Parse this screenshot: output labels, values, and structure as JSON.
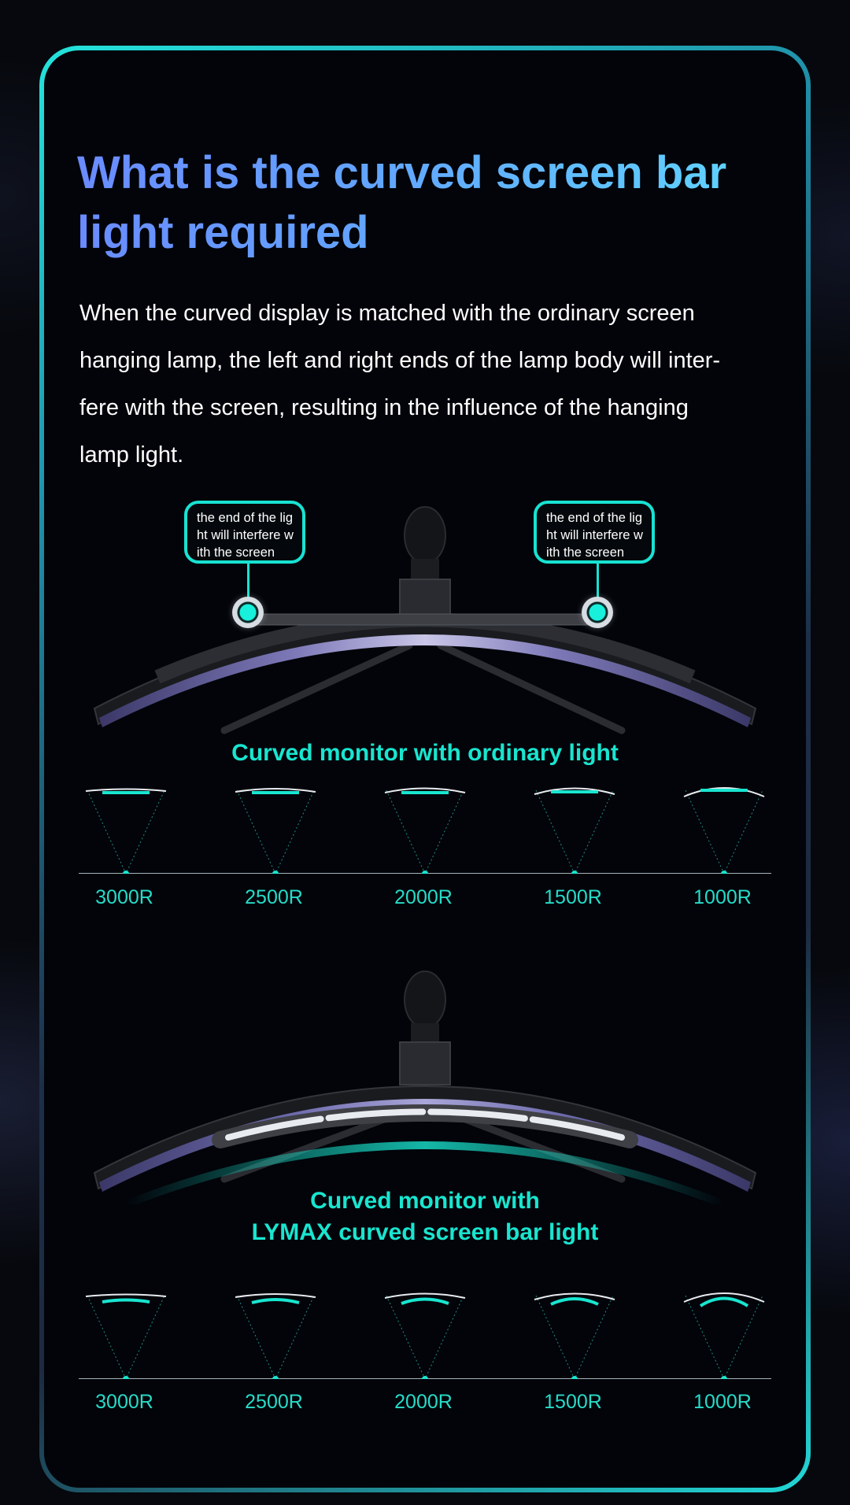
{
  "title": "What is the curved screen bar light required",
  "description": "When the curved display is matched with the ordinary screen hanging lamp, the left and right ends of the lamp body will inter-fere with the screen, resulting in the influence of the hanging lamp light.",
  "description_lines": [
    "When the curved display is matched with the ordinary screen",
    "hanging lamp, the left and right ends of the lamp body will inter-",
    "fere with the screen, resulting in the influence of the hanging",
    "lamp light."
  ],
  "callouts": {
    "left": "the end of the lig\nht will interfere w\nith the screen",
    "right": "the end of the lig\nht will interfere w\nith the screen"
  },
  "section_ordinary": {
    "caption": "Curved monitor with ordinary light",
    "radius_labels": [
      "3000R",
      "2500R",
      "2000R",
      "1500R",
      "1000R"
    ]
  },
  "section_lymax": {
    "caption_line1": "Curved monitor with",
    "caption_line2": "LYMAX curved screen bar light",
    "radius_labels": [
      "3000R",
      "2500R",
      "2000R",
      "1500R",
      "1000R"
    ]
  },
  "colors": {
    "accent": "#19e5cf",
    "title_gradient_start": "#6a8bff",
    "title_gradient_end": "#5fd6ff"
  }
}
